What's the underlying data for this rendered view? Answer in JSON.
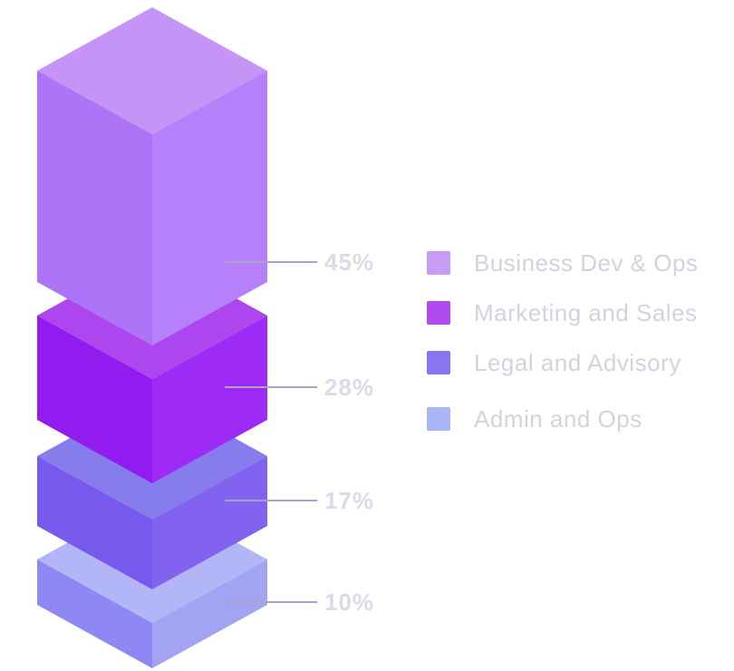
{
  "chart_data": {
    "type": "bar",
    "style": "isometric-3d-stacked-blocks",
    "title": "",
    "unit": "%",
    "legend_position": "right",
    "grid": false,
    "background": "#FFFFFF",
    "categories": [
      "Business Dev & Ops",
      "Marketing and Sales",
      "Legal and Advisory",
      "Admin and Ops"
    ],
    "values": [
      45,
      28,
      17,
      10
    ],
    "series": [
      {
        "name": "Business Dev & Ops",
        "value": 45,
        "label": "45%",
        "color_top": "#C495F7",
        "color_left": "#AE74F8",
        "color_right": "#B680FA",
        "swatch": "#C89CF6"
      },
      {
        "name": "Marketing and Sales",
        "value": 28,
        "label": "28%",
        "color_top": "#AE46EF",
        "color_left": "#921BF0",
        "color_right": "#9D2BF5",
        "swatch": "#B14BF0"
      },
      {
        "name": "Legal and Advisory",
        "value": 17,
        "label": "17%",
        "color_top": "#867CEC",
        "color_left": "#7759ED",
        "color_right": "#8263F0",
        "swatch": "#8A74F3"
      },
      {
        "name": "Admin and Ops",
        "value": 10,
        "label": "10%",
        "color_top": "#B2B6F6",
        "color_left": "#8D88F3",
        "color_right": "#A3A3F4",
        "swatch": "#AAB5F6"
      }
    ]
  },
  "colors": {
    "connector_line": "#A8A4C6",
    "percent_text": "#DDDAE8",
    "legend_text": "#D4D1E1"
  }
}
